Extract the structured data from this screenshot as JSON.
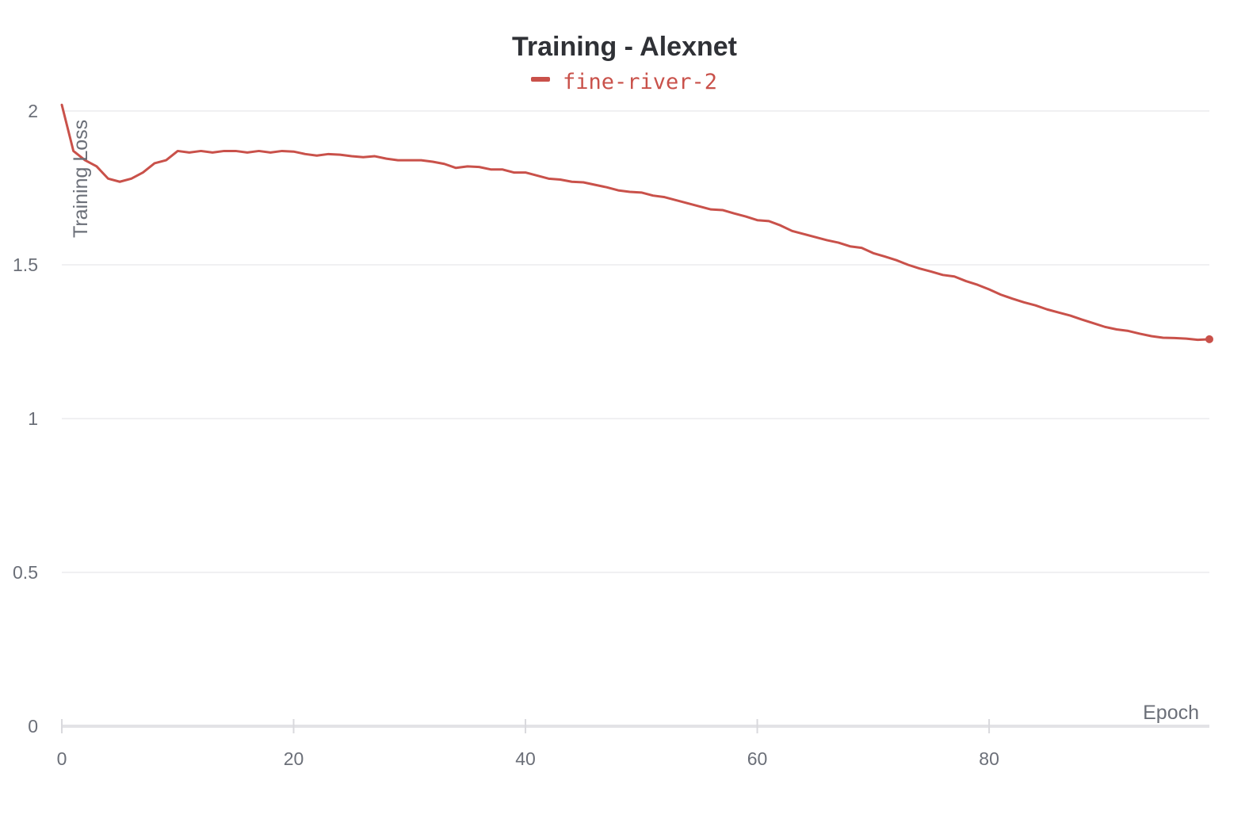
{
  "chart_data": {
    "type": "line",
    "title": "Training - Alexnet",
    "xlabel": "Epoch",
    "ylabel": "Training Loss",
    "xlim": [
      0,
      99
    ],
    "ylim": [
      0,
      2
    ],
    "x_ticks": [
      0,
      20,
      40,
      60,
      80
    ],
    "x_tick_labels": [
      "0",
      "20",
      "40",
      "60",
      "80"
    ],
    "y_ticks": [
      0,
      0.5,
      1,
      1.5,
      2
    ],
    "y_tick_labels": [
      "0",
      "0.5",
      "1",
      "1.5",
      "2"
    ],
    "grid": true,
    "legend_position": "top-center",
    "series": [
      {
        "name": "fine-river-2",
        "color": "#c9514a",
        "x": [
          0,
          1,
          2,
          3,
          4,
          5,
          6,
          7,
          8,
          9,
          10,
          11,
          12,
          13,
          14,
          15,
          16,
          17,
          18,
          19,
          20,
          21,
          22,
          23,
          24,
          25,
          26,
          27,
          28,
          29,
          30,
          31,
          32,
          33,
          34,
          35,
          36,
          37,
          38,
          39,
          40,
          41,
          42,
          43,
          44,
          45,
          46,
          47,
          48,
          49,
          50,
          51,
          52,
          53,
          54,
          55,
          56,
          57,
          58,
          59,
          60,
          61,
          62,
          63,
          64,
          65,
          66,
          67,
          68,
          69,
          70,
          71,
          72,
          73,
          74,
          75,
          76,
          77,
          78,
          79,
          80,
          81,
          82,
          83,
          84,
          85,
          86,
          87,
          88,
          89,
          90,
          91,
          92,
          93,
          94,
          95,
          96,
          97,
          98,
          99
        ],
        "y": [
          2.02,
          1.87,
          1.84,
          1.82,
          1.78,
          1.77,
          1.78,
          1.8,
          1.83,
          1.84,
          1.87,
          1.865,
          1.87,
          1.865,
          1.87,
          1.87,
          1.865,
          1.87,
          1.865,
          1.87,
          1.868,
          1.86,
          1.855,
          1.86,
          1.858,
          1.853,
          1.85,
          1.853,
          1.845,
          1.84,
          1.84,
          1.84,
          1.835,
          1.828,
          1.815,
          1.82,
          1.818,
          1.81,
          1.81,
          1.8,
          1.8,
          1.79,
          1.78,
          1.777,
          1.77,
          1.768,
          1.76,
          1.752,
          1.742,
          1.737,
          1.735,
          1.725,
          1.72,
          1.71,
          1.7,
          1.69,
          1.68,
          1.678,
          1.667,
          1.657,
          1.645,
          1.642,
          1.628,
          1.61,
          1.6,
          1.59,
          1.58,
          1.572,
          1.56,
          1.555,
          1.538,
          1.527,
          1.515,
          1.5,
          1.488,
          1.478,
          1.467,
          1.462,
          1.447,
          1.435,
          1.42,
          1.403,
          1.39,
          1.378,
          1.368,
          1.355,
          1.345,
          1.335,
          1.322,
          1.31,
          1.298,
          1.29,
          1.285,
          1.276,
          1.268,
          1.263,
          1.262,
          1.26,
          1.256,
          1.258
        ]
      }
    ]
  }
}
